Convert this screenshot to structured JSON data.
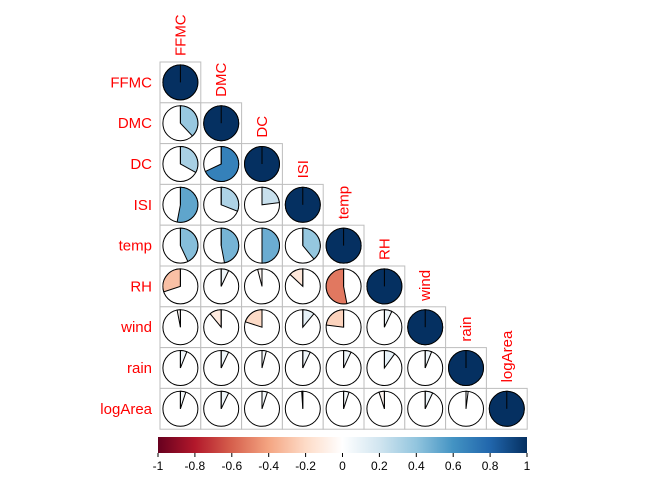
{
  "chart_data": {
    "type": "heatmap",
    "variables": [
      "FFMC",
      "DMC",
      "DC",
      "ISI",
      "temp",
      "RH",
      "wind",
      "rain",
      "logArea"
    ],
    "method": "pie",
    "layout": "lower",
    "label_color": "#ff0000",
    "correlation": [
      [
        1.0
      ],
      [
        0.38,
        1.0
      ],
      [
        0.33,
        0.68,
        1.0
      ],
      [
        0.53,
        0.31,
        0.23,
        1.0
      ],
      [
        0.43,
        0.47,
        0.5,
        0.39,
        1.0
      ],
      [
        -0.3,
        0.07,
        -0.04,
        -0.13,
        -0.53,
        1.0
      ],
      [
        -0.03,
        -0.11,
        -0.2,
        0.11,
        -0.23,
        0.07,
        1.0
      ],
      [
        0.06,
        0.07,
        0.04,
        0.07,
        0.07,
        0.1,
        0.06,
        1.0
      ],
      [
        0.05,
        0.07,
        0.05,
        -0.01,
        0.05,
        -0.05,
        0.07,
        0.02,
        1.0
      ]
    ],
    "colorbar": {
      "range": [
        -1,
        1
      ],
      "ticks": [
        "-1",
        "-0.8",
        "-0.6",
        "-0.4",
        "-0.2",
        "0",
        "0.2",
        "0.4",
        "0.6",
        "0.8",
        "1"
      ],
      "colors": [
        "#67001f",
        "#b2182b",
        "#d6604d",
        "#f4a582",
        "#fddbc7",
        "#ffffff",
        "#d1e5f0",
        "#92c5de",
        "#4393c3",
        "#2166ac",
        "#053061"
      ]
    }
  }
}
